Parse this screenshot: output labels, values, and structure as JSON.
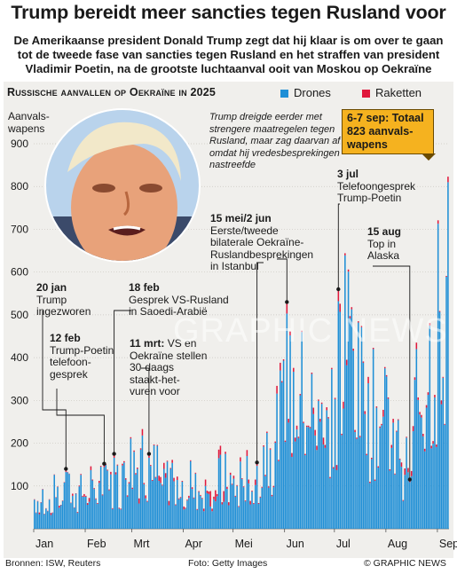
{
  "headline": "Trump bereidt meer sancties tegen Rusland voor",
  "subhead": "De Amerikaanse president Donald Trump zegt dat hij klaar is om over te gaan tot de tweede fase van sancties tegen Rusland en het straffen van president Vladimir Poetin, na de grootste luchtaanval ooit van Moskou op Oekraïne",
  "section_title": "Russische aanvallen op Oekraïne in 2025",
  "legend": {
    "drones": "Drones",
    "missiles": "Raketten"
  },
  "colors": {
    "drones": "#1f8fd6",
    "missiles": "#e0183c",
    "accent": "#f5b21f"
  },
  "y_axis_label": "Aanvals-\nwapens",
  "note": "Trump dreigde eerder met strengere maatregelen tegen Rusland, maar zag daarvan af omdat hij vredesbesprekingen nastreefde",
  "callout": {
    "text": "6-7 sep: Totaal 823 aanvals-wapens"
  },
  "annotations": [
    {
      "date": "20 jan",
      "text": "Trump\ningezworen"
    },
    {
      "date": "12 feb",
      "text": "Trump-Poetin\ntelefoon-\ngesprek"
    },
    {
      "date": "18 feb",
      "text": "Gesprek VS-Rusland\nin Saoedi-Arabië"
    },
    {
      "date": "11 mrt:",
      "text": "VS en\nOekraïne stellen\n30-daags\nstaakt-het-\nvuren voor"
    },
    {
      "date": "15 mei/2 jun",
      "text": "Eerste/tweede\nbilaterale Oekraïne-\nRuslandbesprekingen\nin Istanbul"
    },
    {
      "date": "3 jul",
      "text": "Telefoongesprek\nTrump-Poetin"
    },
    {
      "date": "15 aug",
      "text": "Top in\nAlaska"
    }
  ],
  "footer": {
    "sources": "Bronnen: ISW, Reuters",
    "photo": "Foto: Getty Images",
    "credit": "© GRAPHIC NEWS"
  },
  "watermark": "GRAPHIC NEWS",
  "chart_data": {
    "type": "bar",
    "stacked": true,
    "x_range": [
      "2025-01-01",
      "2025-09-07"
    ],
    "ylim": [
      0,
      900
    ],
    "yticks": [
      100,
      200,
      300,
      400,
      500,
      600,
      700,
      800,
      900
    ],
    "xticks": [
      "Jan",
      "Feb",
      "Mrt",
      "Apr",
      "Mei",
      "Jun",
      "Jul",
      "Aug",
      "Sep"
    ],
    "series": [
      {
        "name": "Drones"
      },
      {
        "name": "Raketten"
      }
    ],
    "highlights": [
      {
        "date": "2025-01-20",
        "total": 140
      },
      {
        "date": "2025-02-12",
        "total": 152
      },
      {
        "date": "2025-02-18",
        "total": 175
      },
      {
        "date": "2025-03-11",
        "total": 175
      },
      {
        "date": "2025-05-15",
        "total": 155
      },
      {
        "date": "2025-06-02",
        "total": 530
      },
      {
        "date": "2025-07-03",
        "total": 560
      },
      {
        "date": "2025-08-15",
        "total": 115
      },
      {
        "date": "2025-09-07",
        "total": 823
      }
    ],
    "weekly_peaks": [
      {
        "week": "2025-01-06",
        "drones": 110,
        "missiles": 5
      },
      {
        "week": "2025-01-13",
        "drones": 130,
        "missiles": 8
      },
      {
        "week": "2025-01-20",
        "drones": 140,
        "missiles": 6
      },
      {
        "week": "2025-01-27",
        "drones": 130,
        "missiles": 10
      },
      {
        "week": "2025-02-03",
        "drones": 140,
        "missiles": 10
      },
      {
        "week": "2025-02-10",
        "drones": 150,
        "missiles": 12
      },
      {
        "week": "2025-02-17",
        "drones": 170,
        "missiles": 10
      },
      {
        "week": "2025-02-24",
        "drones": 250,
        "missiles": 20
      },
      {
        "week": "2025-03-03",
        "drones": 230,
        "missiles": 20
      },
      {
        "week": "2025-03-10",
        "drones": 210,
        "missiles": 15
      },
      {
        "week": "2025-03-17",
        "drones": 180,
        "missiles": 15
      },
      {
        "week": "2025-03-24",
        "drones": 190,
        "missiles": 10
      },
      {
        "week": "2025-03-31",
        "drones": 170,
        "missiles": 10
      },
      {
        "week": "2025-04-07",
        "drones": 140,
        "missiles": 10
      },
      {
        "week": "2025-04-14",
        "drones": 150,
        "missiles": 40
      },
      {
        "week": "2025-04-21",
        "drones": 180,
        "missiles": 35
      },
      {
        "week": "2025-04-28",
        "drones": 150,
        "missiles": 10
      },
      {
        "week": "2025-05-05",
        "drones": 180,
        "missiles": 15
      },
      {
        "week": "2025-05-12",
        "drones": 200,
        "missiles": 15
      },
      {
        "week": "2025-05-19",
        "drones": 300,
        "missiles": 20
      },
      {
        "week": "2025-05-26",
        "drones": 420,
        "missiles": 20
      },
      {
        "week": "2025-06-02",
        "drones": 470,
        "missiles": 60
      },
      {
        "week": "2025-06-09",
        "drones": 480,
        "missiles": 20
      },
      {
        "week": "2025-06-16",
        "drones": 420,
        "missiles": 20
      },
      {
        "week": "2025-06-23",
        "drones": 470,
        "missiles": 20
      },
      {
        "week": "2025-06-30",
        "drones": 520,
        "missiles": 20
      },
      {
        "week": "2025-07-07",
        "drones": 710,
        "missiles": 30
      },
      {
        "week": "2025-07-14",
        "drones": 490,
        "missiles": 20
      },
      {
        "week": "2025-07-21",
        "drones": 420,
        "missiles": 20
      },
      {
        "week": "2025-07-28",
        "drones": 390,
        "missiles": 20
      },
      {
        "week": "2025-08-04",
        "drones": 300,
        "missiles": 10
      },
      {
        "week": "2025-08-11",
        "drones": 260,
        "missiles": 15
      },
      {
        "week": "2025-08-18",
        "drones": 500,
        "missiles": 40
      },
      {
        "week": "2025-08-25",
        "drones": 620,
        "missiles": 40
      },
      {
        "week": "2025-09-01",
        "drones": 810,
        "missiles": 13
      }
    ]
  }
}
